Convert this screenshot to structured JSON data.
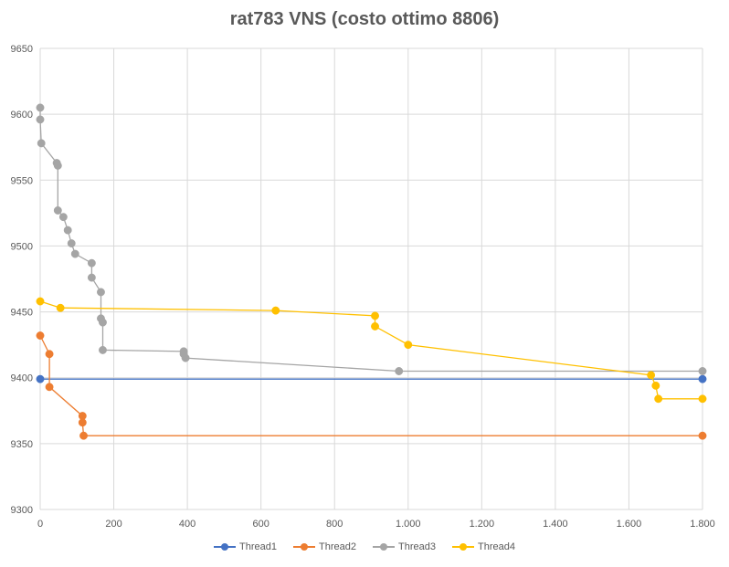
{
  "chart_data": {
    "type": "line",
    "title": "rat783 VNS (costo ottimo 8806)",
    "xlabel": "",
    "ylabel": "",
    "xlim": [
      0,
      1800
    ],
    "ylim": [
      9300,
      9650
    ],
    "x_ticks": [
      "0",
      "200",
      "400",
      "600",
      "800",
      "1.000",
      "1.200",
      "1.400",
      "1.600",
      "1.800"
    ],
    "x_tick_values": [
      0,
      200,
      400,
      600,
      800,
      1000,
      1200,
      1400,
      1600,
      1800
    ],
    "y_ticks": [
      "9300",
      "9350",
      "9400",
      "9450",
      "9500",
      "9550",
      "9600",
      "9650"
    ],
    "y_tick_values": [
      9300,
      9350,
      9400,
      9450,
      9500,
      9550,
      9600,
      9650
    ],
    "grid": true,
    "legend_position": "bottom",
    "series": [
      {
        "name": "Thread1",
        "color": "#4472C4",
        "points": [
          [
            0,
            9399
          ],
          [
            1800,
            9399
          ]
        ]
      },
      {
        "name": "Thread2",
        "color": "#ED7D31",
        "points": [
          [
            0,
            9432
          ],
          [
            25,
            9418
          ],
          [
            25,
            9393
          ],
          [
            115,
            9371
          ],
          [
            115,
            9366
          ],
          [
            118,
            9356
          ],
          [
            1800,
            9356
          ]
        ]
      },
      {
        "name": "Thread3",
        "color": "#A5A5A5",
        "points": [
          [
            0,
            9605
          ],
          [
            0,
            9596
          ],
          [
            3,
            9578
          ],
          [
            45,
            9563
          ],
          [
            48,
            9561
          ],
          [
            48,
            9527
          ],
          [
            63,
            9522
          ],
          [
            75,
            9512
          ],
          [
            85,
            9502
          ],
          [
            95,
            9494
          ],
          [
            140,
            9487
          ],
          [
            140,
            9476
          ],
          [
            165,
            9465
          ],
          [
            165,
            9445
          ],
          [
            170,
            9442
          ],
          [
            170,
            9421
          ],
          [
            390,
            9420
          ],
          [
            390,
            9418
          ],
          [
            395,
            9415
          ],
          [
            975,
            9405
          ],
          [
            1800,
            9405
          ]
        ]
      },
      {
        "name": "Thread4",
        "color": "#FFC000",
        "points": [
          [
            0,
            9458
          ],
          [
            55,
            9453
          ],
          [
            640,
            9451
          ],
          [
            910,
            9447
          ],
          [
            910,
            9439
          ],
          [
            1000,
            9425
          ],
          [
            1660,
            9402
          ],
          [
            1673,
            9394
          ],
          [
            1680,
            9384
          ],
          [
            1800,
            9384
          ]
        ]
      }
    ]
  }
}
